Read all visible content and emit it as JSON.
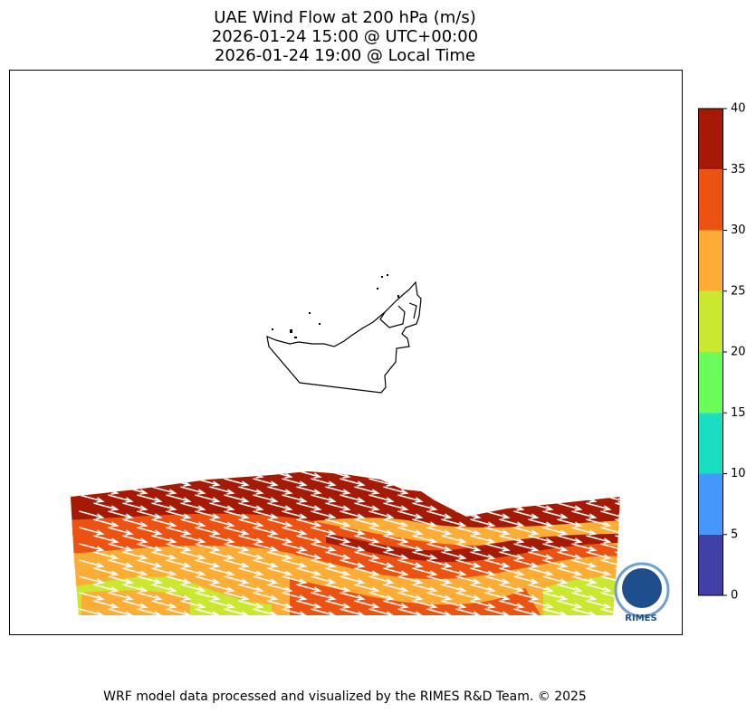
{
  "title": [
    "UAE Wind Flow at 200 hPa (m/s)",
    "2026-01-24 15:00 @ UTC+00:00",
    "2026-01-24 19:00 @ Local Time"
  ],
  "colorbar": {
    "ticks": [
      0,
      5,
      10,
      15,
      20,
      25,
      30,
      35,
      40
    ],
    "colors": [
      "#4040a6",
      "#4497fd",
      "#19dfc0",
      "#6afc59",
      "#cbe830",
      "#fdac36",
      "#ec5312",
      "#a51a05"
    ]
  },
  "logo": "RIMES",
  "footer": "WRF model data processed and visualized by the RIMES R&D Team. © 2025"
}
